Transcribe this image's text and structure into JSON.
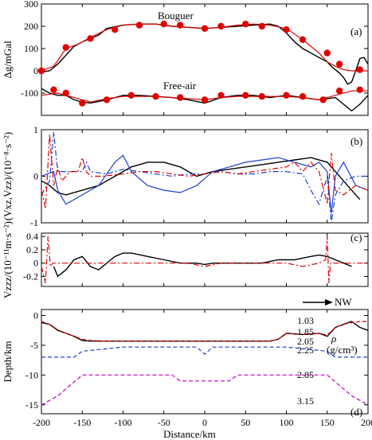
{
  "chart_data": [
    {
      "panel": "a",
      "type": "line",
      "panel_label": "(a)",
      "ylabel": "Δg/mGal",
      "ylim": [
        -200,
        300
      ],
      "yticks": [
        -100,
        0,
        100,
        200,
        300
      ],
      "xlim": [
        -200,
        200
      ],
      "annotations": [
        "Bouguer",
        "Free-air"
      ],
      "series": [
        {
          "color": "#000000",
          "style": "solid",
          "x": [
            -200,
            -190,
            -180,
            -170,
            -160,
            -150,
            -140,
            -130,
            -120,
            -100,
            -80,
            -60,
            -40,
            -20,
            0,
            20,
            40,
            60,
            80,
            90,
            100,
            110,
            120,
            130,
            140,
            150,
            155,
            160,
            165,
            170,
            175,
            180,
            185,
            190,
            195,
            200
          ],
          "y": [
            -5,
            0,
            30,
            70,
            110,
            130,
            145,
            160,
            190,
            205,
            210,
            210,
            200,
            195,
            190,
            195,
            200,
            205,
            210,
            200,
            170,
            130,
            100,
            80,
            60,
            40,
            20,
            5,
            -10,
            -30,
            -60,
            -50,
            0,
            55,
            60,
            30
          ]
        },
        {
          "color": "#e00000",
          "style": "solid",
          "x": [
            -200,
            -185,
            -170,
            -155,
            -140,
            -120,
            -100,
            -80,
            -60,
            -40,
            -20,
            0,
            20,
            40,
            60,
            80,
            100,
            120,
            140,
            150,
            160,
            170,
            180,
            190,
            200
          ],
          "y": [
            0,
            20,
            100,
            120,
            150,
            185,
            205,
            210,
            210,
            200,
            195,
            190,
            195,
            205,
            210,
            205,
            190,
            140,
            80,
            40,
            20,
            5,
            0,
            0,
            0
          ]
        },
        {
          "color": "#000000",
          "style": "solid",
          "x": [
            -200,
            -190,
            -180,
            -170,
            -160,
            -150,
            -140,
            -120,
            -100,
            -80,
            -60,
            -40,
            -20,
            0,
            20,
            40,
            60,
            80,
            100,
            120,
            140,
            160,
            170,
            180,
            190,
            200
          ],
          "y": [
            -80,
            -100,
            -110,
            -110,
            -130,
            -140,
            -145,
            -130,
            -110,
            -110,
            -115,
            -120,
            -130,
            -145,
            -120,
            -110,
            -110,
            -120,
            -110,
            -120,
            -130,
            -120,
            -150,
            -180,
            -150,
            -110
          ]
        },
        {
          "color": "#e00000",
          "style": "solid",
          "x": [
            -200,
            -180,
            -160,
            -140,
            -120,
            -100,
            -80,
            -60,
            -40,
            -20,
            0,
            20,
            40,
            60,
            80,
            100,
            120,
            140,
            160,
            180,
            200
          ],
          "y": [
            -110,
            -100,
            -120,
            -140,
            -125,
            -115,
            -115,
            -115,
            -120,
            -125,
            -130,
            -120,
            -115,
            -115,
            -115,
            -115,
            -120,
            -130,
            -110,
            -90,
            -90
          ]
        }
      ],
      "markers": {
        "color": "#e00000",
        "bouguer": {
          "x": [
            -200,
            -170,
            -140,
            -110,
            -80,
            -50,
            -30,
            0,
            20,
            50,
            70,
            100,
            120,
            150,
            165,
            190
          ],
          "y": [
            0,
            105,
            145,
            185,
            205,
            210,
            205,
            190,
            200,
            210,
            200,
            185,
            140,
            80,
            30,
            5
          ]
        },
        "freeair": {
          "x": [
            -185,
            -170,
            -150,
            -120,
            -90,
            -60,
            -30,
            0,
            20,
            50,
            70,
            100,
            120,
            145,
            165,
            190
          ],
          "y": [
            -85,
            -100,
            -145,
            -130,
            -110,
            -115,
            -120,
            -130,
            -110,
            -110,
            -115,
            -110,
            -115,
            -130,
            -90,
            -85
          ]
        }
      }
    },
    {
      "panel": "b",
      "type": "line",
      "panel_label": "(b)",
      "ylabel": "(Vxz,Vzz)/(10⁻⁸·s⁻²)",
      "ylim": [
        -1.0,
        1.0
      ],
      "yticks": [
        -1.0,
        0,
        1.0
      ],
      "xlim": [
        -200,
        200
      ],
      "series": [
        {
          "color": "#000000",
          "style": "solid",
          "x": [
            -200,
            -190,
            -180,
            -170,
            -150,
            -130,
            -110,
            -90,
            -70,
            -50,
            -30,
            -10,
            10,
            30,
            50,
            70,
            90,
            110,
            130,
            150,
            160,
            170,
            180,
            190
          ],
          "y": [
            -0.1,
            -0.2,
            -0.35,
            -0.4,
            -0.3,
            -0.2,
            0,
            0.2,
            0.3,
            0.3,
            0.2,
            0,
            0.1,
            0.15,
            0.2,
            0.25,
            0.3,
            0.35,
            0.4,
            0.3,
            0.1,
            -0.1,
            -0.3,
            -0.5
          ]
        },
        {
          "color": "#1f3fcf",
          "style": "solid",
          "x": [
            -200,
            -185,
            -180,
            -170,
            -150,
            -130,
            -110,
            -100,
            -90,
            -70,
            -50,
            -30,
            -10,
            10,
            30,
            50,
            70,
            90,
            110,
            130,
            140,
            150,
            155,
            160,
            170,
            185,
            200
          ],
          "y": [
            0,
            0.1,
            -0.3,
            -0.6,
            -0.4,
            -0.2,
            0.3,
            0.45,
            0.1,
            -0.2,
            -0.3,
            -0.35,
            -0.2,
            0.1,
            0.2,
            0.3,
            0.35,
            0.4,
            0.3,
            0.2,
            0.3,
            0.1,
            -0.8,
            0,
            0.3,
            -0.2,
            -0.3
          ]
        },
        {
          "color": "#1f3fcf",
          "style": "dashdot",
          "x": [
            -200,
            -190,
            -185,
            -180,
            -170,
            -150,
            -145,
            -140,
            -120,
            -100,
            -80,
            -60,
            -40,
            -20,
            0,
            20,
            40,
            60,
            80,
            100,
            120,
            130,
            140,
            150,
            155,
            160,
            170,
            185,
            200
          ],
          "y": [
            -0.4,
            -0.1,
            0.95,
            0.1,
            0.1,
            0.1,
            0.3,
            0.1,
            0.05,
            0.15,
            0.1,
            0.05,
            0,
            0.05,
            0.05,
            0.1,
            0.05,
            0.05,
            0.1,
            0.1,
            0.05,
            -0.3,
            -0.6,
            0,
            -1.0,
            -0.4,
            -0.1,
            0,
            0
          ]
        },
        {
          "color": "#e00000",
          "style": "dashdot",
          "x": [
            -200,
            -195,
            -190,
            -185,
            -180,
            -175,
            -165,
            -155,
            -150,
            -145,
            -140,
            -125,
            -100,
            -80,
            -60,
            -40,
            -20,
            0,
            20,
            40,
            60,
            80,
            100,
            110,
            120,
            130,
            140,
            150,
            155,
            160,
            170,
            185,
            200
          ],
          "y": [
            -0.3,
            -0.7,
            0.9,
            -0.2,
            0.2,
            -0.1,
            0.1,
            0.1,
            0.4,
            0.1,
            0.0,
            0.0,
            0.05,
            0.1,
            0.1,
            0.05,
            0.0,
            0.05,
            0.1,
            0.05,
            0.1,
            0.15,
            0.2,
            0.3,
            0.1,
            0.3,
            0.1,
            -0.6,
            0.5,
            -0.3,
            -0.4,
            -0.2,
            -0.3
          ]
        }
      ]
    },
    {
      "panel": "c",
      "type": "line",
      "panel_label": "(c)",
      "ylabel": "Vzzz/(10⁻¹¹m·s⁻²)",
      "ylim": [
        -0.35,
        0.45
      ],
      "yticks": [
        -0.2,
        0,
        0.2,
        0.4
      ],
      "xlim": [
        -200,
        200
      ],
      "series": [
        {
          "color": "#000000",
          "style": "solid",
          "x": [
            -185,
            -180,
            -170,
            -160,
            -150,
            -140,
            -130,
            -120,
            -110,
            -100,
            -90,
            -70,
            -50,
            -30,
            -10,
            0,
            10,
            30,
            50,
            70,
            90,
            110,
            130,
            140,
            150,
            160,
            170,
            180
          ],
          "y": [
            -0.05,
            -0.2,
            -0.1,
            0.05,
            0.1,
            -0.05,
            -0.1,
            0,
            0.1,
            0.15,
            0.15,
            0.1,
            0.05,
            0.0,
            0.0,
            -0.02,
            0.0,
            0.0,
            0.0,
            0.0,
            0.05,
            0.05,
            0.1,
            0.12,
            0.1,
            0.05,
            0.0,
            -0.05
          ]
        },
        {
          "color": "#e00000",
          "style": "dashdot",
          "x": [
            -200,
            -195,
            -192,
            -189,
            -186,
            -180,
            -160,
            -140,
            -100,
            -60,
            -20,
            0,
            20,
            60,
            100,
            120,
            140,
            148,
            150,
            152,
            154,
            160,
            180,
            200
          ],
          "y": [
            -0.05,
            -0.3,
            0.4,
            -0.05,
            0.0,
            0.0,
            0.0,
            0.0,
            0.0,
            0.0,
            0.0,
            -0.05,
            0.0,
            0.0,
            0.0,
            -0.05,
            0.0,
            0.05,
            0.4,
            -0.3,
            0.0,
            0.0,
            0.0,
            0.0
          ]
        }
      ]
    },
    {
      "panel": "d",
      "type": "line",
      "panel_label": "(d)",
      "ylabel": "Depth/km",
      "xlabel": "Distance/km",
      "ylim": [
        -16.5,
        1.0
      ],
      "yticks": [
        -15,
        -10,
        -5,
        0
      ],
      "xlim": [
        -200,
        200
      ],
      "xticks": [
        -200,
        -150,
        -100,
        -50,
        0,
        50,
        100,
        150,
        200
      ],
      "direction_label": "NW",
      "legend_title": "ρ",
      "legend_unit": "(g/cm³)",
      "density_labels": [
        "1.03",
        "1.85",
        "2.05",
        "2.25",
        "2.85",
        "3.15"
      ],
      "series": [
        {
          "color": "#000000",
          "style": "solid",
          "x": [
            -200,
            -190,
            -180,
            -170,
            -160,
            -150,
            -140,
            -120,
            -100,
            -80,
            -60,
            -40,
            -20,
            0,
            20,
            40,
            60,
            80,
            90,
            100,
            120,
            140,
            150,
            160,
            170,
            180,
            190,
            200
          ],
          "y": [
            -1.2,
            -1.5,
            -2.5,
            -3.0,
            -3.5,
            -4.2,
            -4.3,
            -4.3,
            -4.3,
            -4.3,
            -4.3,
            -4.3,
            -4.3,
            -4.3,
            -4.3,
            -4.3,
            -4.3,
            -4.3,
            -4.0,
            -3.0,
            -3.2,
            -3.0,
            -3.5,
            -2.0,
            -1.5,
            -1.0,
            -2.0,
            -2.5
          ]
        },
        {
          "color": "#e00000",
          "style": "dashed",
          "x": [
            -200,
            -190,
            -180,
            -170,
            -160,
            -150,
            -140,
            -120,
            -100,
            -80,
            -60,
            -40,
            -20,
            0,
            20,
            40,
            60,
            80,
            90,
            100,
            120,
            140,
            150,
            160,
            170,
            180,
            190,
            200
          ],
          "y": [
            -1.0,
            -1.5,
            -2.4,
            -3.0,
            -3.5,
            -4.0,
            -4.2,
            -4.3,
            -4.3,
            -4.3,
            -4.3,
            -4.3,
            -4.3,
            -4.3,
            -4.3,
            -4.3,
            -4.3,
            -4.3,
            -4.0,
            -3.0,
            -3.2,
            -3.0,
            -3.3,
            -2.0,
            -1.5,
            -1.2,
            -1.0,
            -1.0
          ]
        },
        {
          "color": "#1f3fcf",
          "style": "dashed",
          "x": [
            -200,
            -160,
            -150,
            -100,
            -10,
            0,
            10,
            90,
            100,
            150,
            160,
            200
          ],
          "y": [
            -7.0,
            -7.0,
            -6.0,
            -5.3,
            -5.3,
            -6.5,
            -5.3,
            -5.3,
            -5.3,
            -6.0,
            -7.0,
            -7.0
          ]
        },
        {
          "color": "#c000c0",
          "style": "dashed",
          "x": [
            -200,
            -180,
            -150,
            -40,
            -30,
            30,
            40,
            150,
            180,
            200
          ],
          "y": [
            -15.0,
            -13.5,
            -10.0,
            -10.0,
            -11.0,
            -11.0,
            -10.0,
            -10.0,
            -13.5,
            -15.0
          ]
        }
      ]
    }
  ]
}
